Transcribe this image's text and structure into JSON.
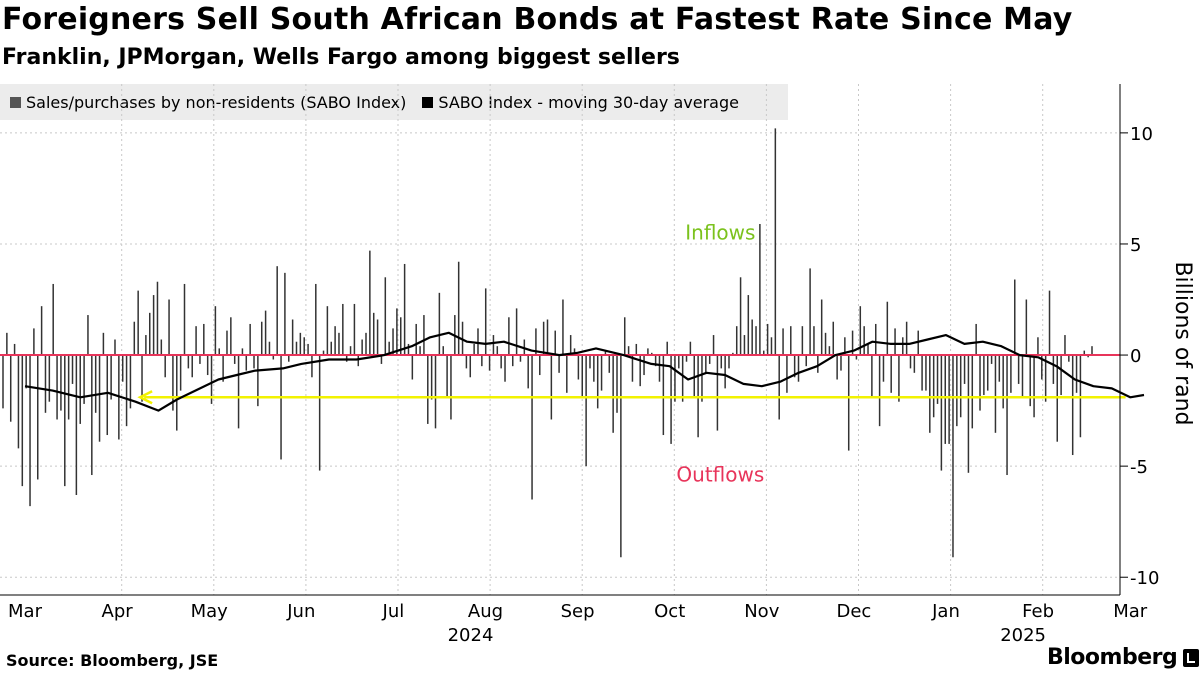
{
  "title": "Foreigners Sell South African Bonds at Fastest Rate Since May",
  "subtitle": "Franklin, JPMorgan, Wells Fargo among biggest sellers",
  "source": "Source: Bloomberg, JSE",
  "brand": "Bloomberg",
  "colors": {
    "bars": "#333333",
    "average_line": "#000000",
    "zero_line": "#e8345a",
    "highlight_arrow": "#f2f200",
    "inflows": "#7bc21d",
    "outflows": "#e8345a",
    "legend_bg": "#ececec",
    "grid": "#c8c8c8"
  },
  "chart_data": {
    "type": "bar+line",
    "legend": [
      {
        "label": "Sales/purchases by non-residents (SABO Index)",
        "color": "#555555"
      },
      {
        "label": "SABO Index - moving 30-day average",
        "color": "#000000"
      }
    ],
    "ylabel": "Billions of rand",
    "ylim": [
      -10.8,
      12.2
    ],
    "yticks": [
      10,
      5,
      0,
      -5,
      -10
    ],
    "x_range": [
      "2024-03-01",
      "2025-03-12"
    ],
    "x_month_ticks": [
      {
        "label": "Mar",
        "month_index": 0
      },
      {
        "label": "Apr",
        "month_index": 1
      },
      {
        "label": "May",
        "month_index": 2
      },
      {
        "label": "Jun",
        "month_index": 3
      },
      {
        "label": "Jul",
        "month_index": 4
      },
      {
        "label": "Aug",
        "month_index": 5
      },
      {
        "label": "Sep",
        "month_index": 6
      },
      {
        "label": "Oct",
        "month_index": 7
      },
      {
        "label": "Nov",
        "month_index": 8
      },
      {
        "label": "Dec",
        "month_index": 9
      },
      {
        "label": "Jan",
        "month_index": 10
      },
      {
        "label": "Feb",
        "month_index": 11
      },
      {
        "label": "Mar",
        "month_index": 12
      }
    ],
    "year_labels": [
      {
        "label": "2024",
        "month_index": 5
      },
      {
        "label": "2025",
        "month_index": 11
      }
    ],
    "annotations": [
      {
        "text": "Inflows",
        "x_month": 7.55,
        "y": 5.2,
        "color": "#7bc21d"
      },
      {
        "text": "Outflows",
        "x_month": 7.55,
        "y": -5.7,
        "color": "#e8345a"
      }
    ],
    "highlight_line": {
      "from_month": 1.25,
      "to_month": 11.95,
      "value": -1.9,
      "color": "#f2f200"
    },
    "daily_flows": [
      -2.4,
      1.0,
      -3.0,
      0.5,
      -4.2,
      -5.9,
      -1.5,
      -6.8,
      1.2,
      -5.6,
      2.2,
      -2.6,
      -2.1,
      3.2,
      -2.9,
      -2.5,
      -5.9,
      -2.9,
      -1.3,
      -6.3,
      -3.1,
      -2.2,
      1.8,
      -5.4,
      -2.6,
      -3.9,
      1.0,
      -3.6,
      -2.0,
      0.7,
      -3.8,
      -1.2,
      -3.2,
      -2.4,
      1.5,
      2.9,
      -2.1,
      0.9,
      1.9,
      2.7,
      3.3,
      0.7,
      -1.0,
      2.5,
      -2.5,
      -3.4,
      -1.6,
      3.2,
      -0.6,
      -1.0,
      1.3,
      -0.4,
      1.4,
      -0.9,
      -2.2,
      2.2,
      0.3,
      -1.2,
      1.1,
      1.7,
      -0.4,
      -3.3,
      0.3,
      -0.7,
      1.4,
      -0.6,
      -2.3,
      1.5,
      2.0,
      0.6,
      -0.2,
      4.0,
      -4.7,
      3.7,
      -0.3,
      1.6,
      0.6,
      1.0,
      0.8,
      0.5,
      -1.0,
      3.2,
      -5.2,
      0.2,
      2.2,
      0.6,
      1.3,
      1.0,
      2.3,
      -0.3,
      0.4,
      2.3,
      -0.5,
      0.7,
      1.0,
      4.7,
      1.9,
      1.6,
      -0.4,
      3.5,
      0.6,
      1.2,
      2.1,
      1.7,
      4.1,
      0.5,
      -1.1,
      1.4,
      0.4,
      1.8,
      -3.1,
      -2.0,
      -3.3,
      2.8,
      0.4,
      -1.9,
      -2.9,
      1.8,
      4.2,
      1.5,
      -0.6,
      -1.0,
      0.5,
      1.2,
      -0.5,
      3.0,
      -0.7,
      0.9,
      0.4,
      -0.6,
      -1.2,
      1.7,
      -0.5,
      2.1,
      -0.3,
      0.7,
      -1.5,
      -6.5,
      1.2,
      -0.9,
      1.5,
      1.6,
      -2.9,
      1.1,
      -0.8,
      2.5,
      -1.7,
      0.9,
      0.3,
      -1.1,
      -1.9,
      -5.0,
      -0.6,
      -1.2,
      -2.4,
      -1.6,
      0.2,
      -0.8,
      -3.5,
      -2.6,
      -9.1,
      1.7,
      0.4,
      -1.2,
      0.5,
      -1.4,
      -0.9,
      0.3,
      0.1,
      -0.5,
      -1.2,
      -3.6,
      0.6,
      -4.0,
      -2.1,
      -0.6,
      -2.1,
      -0.3,
      0.6,
      -1.9,
      -3.7,
      -2.1,
      -0.8,
      -0.4,
      0.9,
      -3.4,
      -0.6,
      -1.5,
      -0.6,
      0.1,
      1.3,
      3.5,
      0.9,
      2.7,
      1.6,
      1.3,
      5.9,
      0.2,
      1.4,
      0.8,
      10.2,
      -2.9,
      1.2,
      -1.7,
      1.3,
      -1.0,
      -1.2,
      1.3,
      -0.5,
      3.9,
      1.3,
      -0.8,
      2.5,
      1.0,
      0.4,
      1.5,
      -1.1,
      -0.7,
      0.8,
      -4.3,
      1.1,
      -0.2,
      2.2,
      1.3,
      0.5,
      -1.9,
      1.4,
      -3.2,
      -1.2,
      2.4,
      -1.7,
      1.2,
      -2.1,
      0.8,
      1.5,
      -0.6,
      -0.8,
      1.1,
      -1.6,
      -1.6,
      -3.5,
      -2.8,
      -2.2,
      -5.2,
      -4.0,
      -4.0,
      -9.1,
      -3.2,
      -2.8,
      -1.3,
      -5.3,
      -3.3,
      1.4,
      -2.5,
      -1.8,
      -1.6,
      -0.4,
      -3.5,
      -1.2,
      -2.4,
      -5.4,
      -1.7,
      3.4,
      -1.3,
      -1.9,
      2.5,
      -2.3,
      -2.8,
      0.8,
      -1.1,
      -2.1,
      2.9,
      -1.3,
      -3.9,
      -1.8,
      0.9,
      -0.3,
      -4.5,
      -1.7,
      -3.7,
      0.2,
      -0.1,
      0.4
    ],
    "moving_average_30d": {
      "month_positions": [
        0.0,
        0.3,
        0.6,
        0.9,
        1.2,
        1.45,
        1.65,
        1.9,
        2.1,
        2.3,
        2.5,
        2.8,
        3.0,
        3.3,
        3.6,
        3.9,
        4.2,
        4.4,
        4.6,
        4.8,
        5.0,
        5.2,
        5.5,
        5.8,
        6.0,
        6.2,
        6.5,
        6.8,
        7.0,
        7.2,
        7.4,
        7.6,
        7.8,
        8.0,
        8.2,
        8.4,
        8.6,
        8.8,
        9.0,
        9.2,
        9.4,
        9.6,
        9.8,
        10.0,
        10.2,
        10.4,
        10.6,
        10.8,
        11.0,
        11.2,
        11.4,
        11.6,
        11.8,
        12.0,
        12.15
      ],
      "values": [
        -1.4,
        -1.6,
        -1.9,
        -1.7,
        -2.1,
        -2.5,
        -2.0,
        -1.5,
        -1.1,
        -0.9,
        -0.7,
        -0.6,
        -0.4,
        -0.2,
        -0.2,
        0.0,
        0.4,
        0.8,
        1.0,
        0.6,
        0.5,
        0.6,
        0.2,
        0.0,
        0.1,
        0.3,
        0.0,
        -0.4,
        -0.5,
        -1.1,
        -0.8,
        -0.9,
        -1.3,
        -1.4,
        -1.2,
        -0.8,
        -0.5,
        0.0,
        0.2,
        0.6,
        0.5,
        0.5,
        0.7,
        0.9,
        0.5,
        0.6,
        0.4,
        0.0,
        -0.1,
        -0.5,
        -1.1,
        -1.4,
        -1.5,
        -1.9,
        -1.8
      ]
    }
  }
}
